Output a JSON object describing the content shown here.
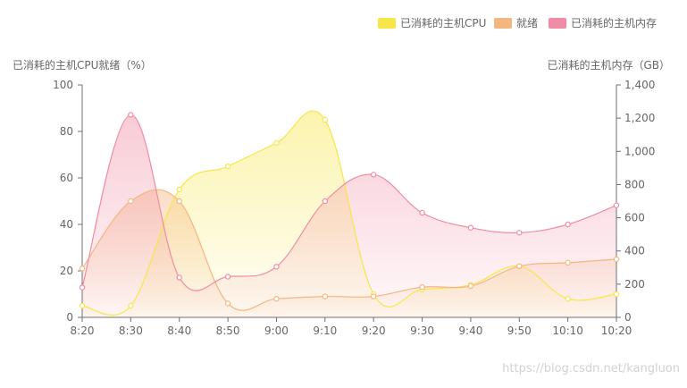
{
  "chart_data": {
    "type": "area",
    "x": [
      "8:20",
      "8:30",
      "8:40",
      "8:50",
      "9:00",
      "9:10",
      "9:20",
      "9:30",
      "9:40",
      "9:50",
      "10:10",
      "10:20"
    ],
    "legend": {
      "position": "top-right"
    },
    "y_left": {
      "label": "已消耗的主机CPU就绪（%）",
      "min": 0,
      "max": 100,
      "ticks": [
        "0",
        "20",
        "40",
        "60",
        "80",
        "100"
      ]
    },
    "y_right": {
      "label": "已消耗的主机内存（GB）",
      "min": 0,
      "max": 1400,
      "ticks": [
        "0",
        "200",
        "400",
        "600",
        "800",
        "1,000",
        "1,200",
        "1,400"
      ]
    },
    "grid": false,
    "series": [
      {
        "name": "已消耗的主机CPU",
        "axis": "left",
        "color": "#f7e64a",
        "values": [
          5,
          5,
          55,
          65,
          75,
          85,
          10,
          12,
          14,
          22,
          8,
          10
        ]
      },
      {
        "name": "就绪",
        "axis": "left",
        "color": "#f5b57f",
        "values": [
          21,
          50,
          50,
          6,
          8,
          9,
          9,
          13,
          13.5,
          22,
          23.5,
          25
        ]
      },
      {
        "name": "已消耗的主机内存",
        "axis": "right",
        "color": "#f08ca3",
        "values": [
          180,
          1220,
          240,
          245,
          305,
          700,
          860,
          630,
          540,
          510,
          560,
          675
        ]
      }
    ]
  },
  "watermark": "https://blog.csdn.net/kangluon"
}
